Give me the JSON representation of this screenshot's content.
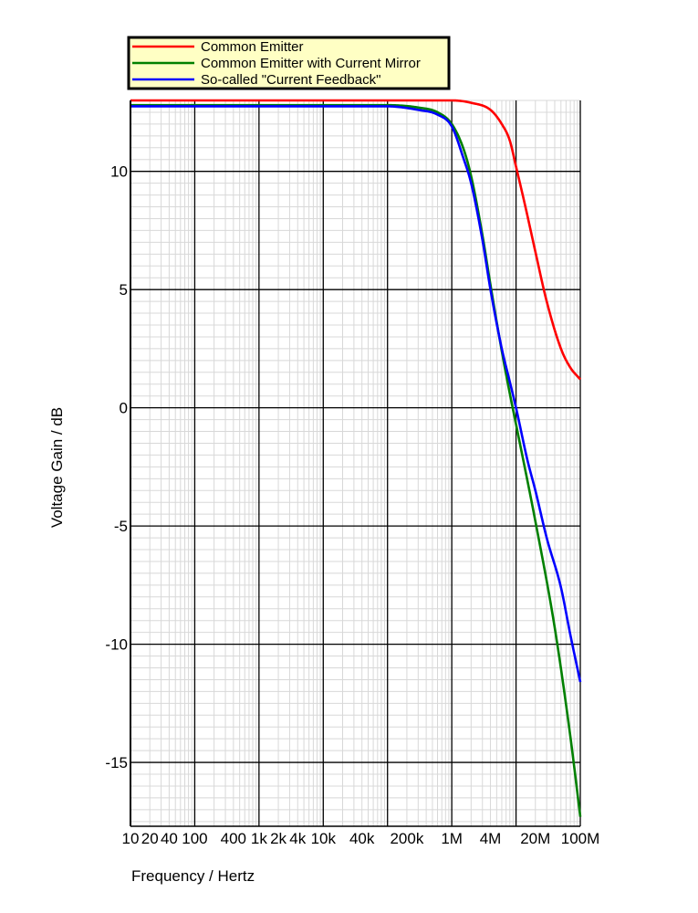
{
  "chart_data": {
    "type": "line",
    "xlabel": "Frequency / Hertz",
    "ylabel": "Voltage Gain / dB",
    "x_scale": "log",
    "xlim": [
      10,
      100000000
    ],
    "ylim": [
      -17.7,
      13
    ],
    "grid": true,
    "legend_position": "top-left",
    "x_ticks": [
      {
        "value": 10,
        "label": "10"
      },
      {
        "value": 20,
        "label": "20"
      },
      {
        "value": 40,
        "label": "40"
      },
      {
        "value": 100,
        "label": "100"
      },
      {
        "value": 400,
        "label": "400"
      },
      {
        "value": 1000,
        "label": "1k"
      },
      {
        "value": 2000,
        "label": "2k"
      },
      {
        "value": 4000,
        "label": "4k"
      },
      {
        "value": 10000,
        "label": "10k"
      },
      {
        "value": 40000,
        "label": "40k"
      },
      {
        "value": 200000,
        "label": "200k"
      },
      {
        "value": 1000000,
        "label": "1M"
      },
      {
        "value": 4000000,
        "label": "4M"
      },
      {
        "value": 20000000,
        "label": "20M"
      },
      {
        "value": 100000000,
        "label": "100M"
      }
    ],
    "y_ticks": [
      {
        "value": 10,
        "label": "10"
      },
      {
        "value": 5,
        "label": "5"
      },
      {
        "value": 0,
        "label": "0"
      },
      {
        "value": -5,
        "label": "-5"
      },
      {
        "value": -10,
        "label": "-10"
      },
      {
        "value": -15,
        "label": "-15"
      }
    ],
    "series": [
      {
        "name": "Common Emitter",
        "color": "#ff0000",
        "points": [
          [
            10,
            13.0
          ],
          [
            100000,
            13.0
          ],
          [
            1000000,
            13.0
          ],
          [
            2000000,
            12.9
          ],
          [
            4000000,
            12.6
          ],
          [
            6000000,
            12.0
          ],
          [
            8000000,
            11.3
          ],
          [
            10000000,
            10.2
          ],
          [
            14000000,
            8.5
          ],
          [
            20000000,
            6.6
          ],
          [
            30000000,
            4.5
          ],
          [
            50000000,
            2.5
          ],
          [
            70000000,
            1.7
          ],
          [
            100000000,
            1.2
          ]
        ]
      },
      {
        "name": "Common Emitter with Current Mirror",
        "color": "#008000",
        "points": [
          [
            10,
            12.8
          ],
          [
            100000,
            12.8
          ],
          [
            300000,
            12.7
          ],
          [
            600000,
            12.5
          ],
          [
            1000000,
            12.0
          ],
          [
            1500000,
            11.0
          ],
          [
            2000000,
            9.8
          ],
          [
            3000000,
            7.3
          ],
          [
            4000000,
            5.2
          ],
          [
            6000000,
            2.4
          ],
          [
            8000000,
            0.6
          ],
          [
            10000000,
            -0.7
          ],
          [
            20000000,
            -4.8
          ],
          [
            40000000,
            -9.3
          ],
          [
            70000000,
            -13.9
          ],
          [
            100000000,
            -17.3
          ]
        ]
      },
      {
        "name": "So-called \"Current Feedback\"",
        "color": "#0000ff",
        "points": [
          [
            10,
            12.75
          ],
          [
            100000,
            12.75
          ],
          [
            300000,
            12.6
          ],
          [
            600000,
            12.4
          ],
          [
            1000000,
            11.9
          ],
          [
            1500000,
            10.6
          ],
          [
            2000000,
            9.5
          ],
          [
            3000000,
            7.1
          ],
          [
            4000000,
            5.0
          ],
          [
            6000000,
            2.5
          ],
          [
            8000000,
            1.1
          ],
          [
            10000000,
            0.0
          ],
          [
            15000000,
            -2.2
          ],
          [
            20000000,
            -3.5
          ],
          [
            30000000,
            -5.5
          ],
          [
            50000000,
            -7.6
          ],
          [
            70000000,
            -9.6
          ],
          [
            100000000,
            -11.6
          ]
        ]
      }
    ]
  }
}
